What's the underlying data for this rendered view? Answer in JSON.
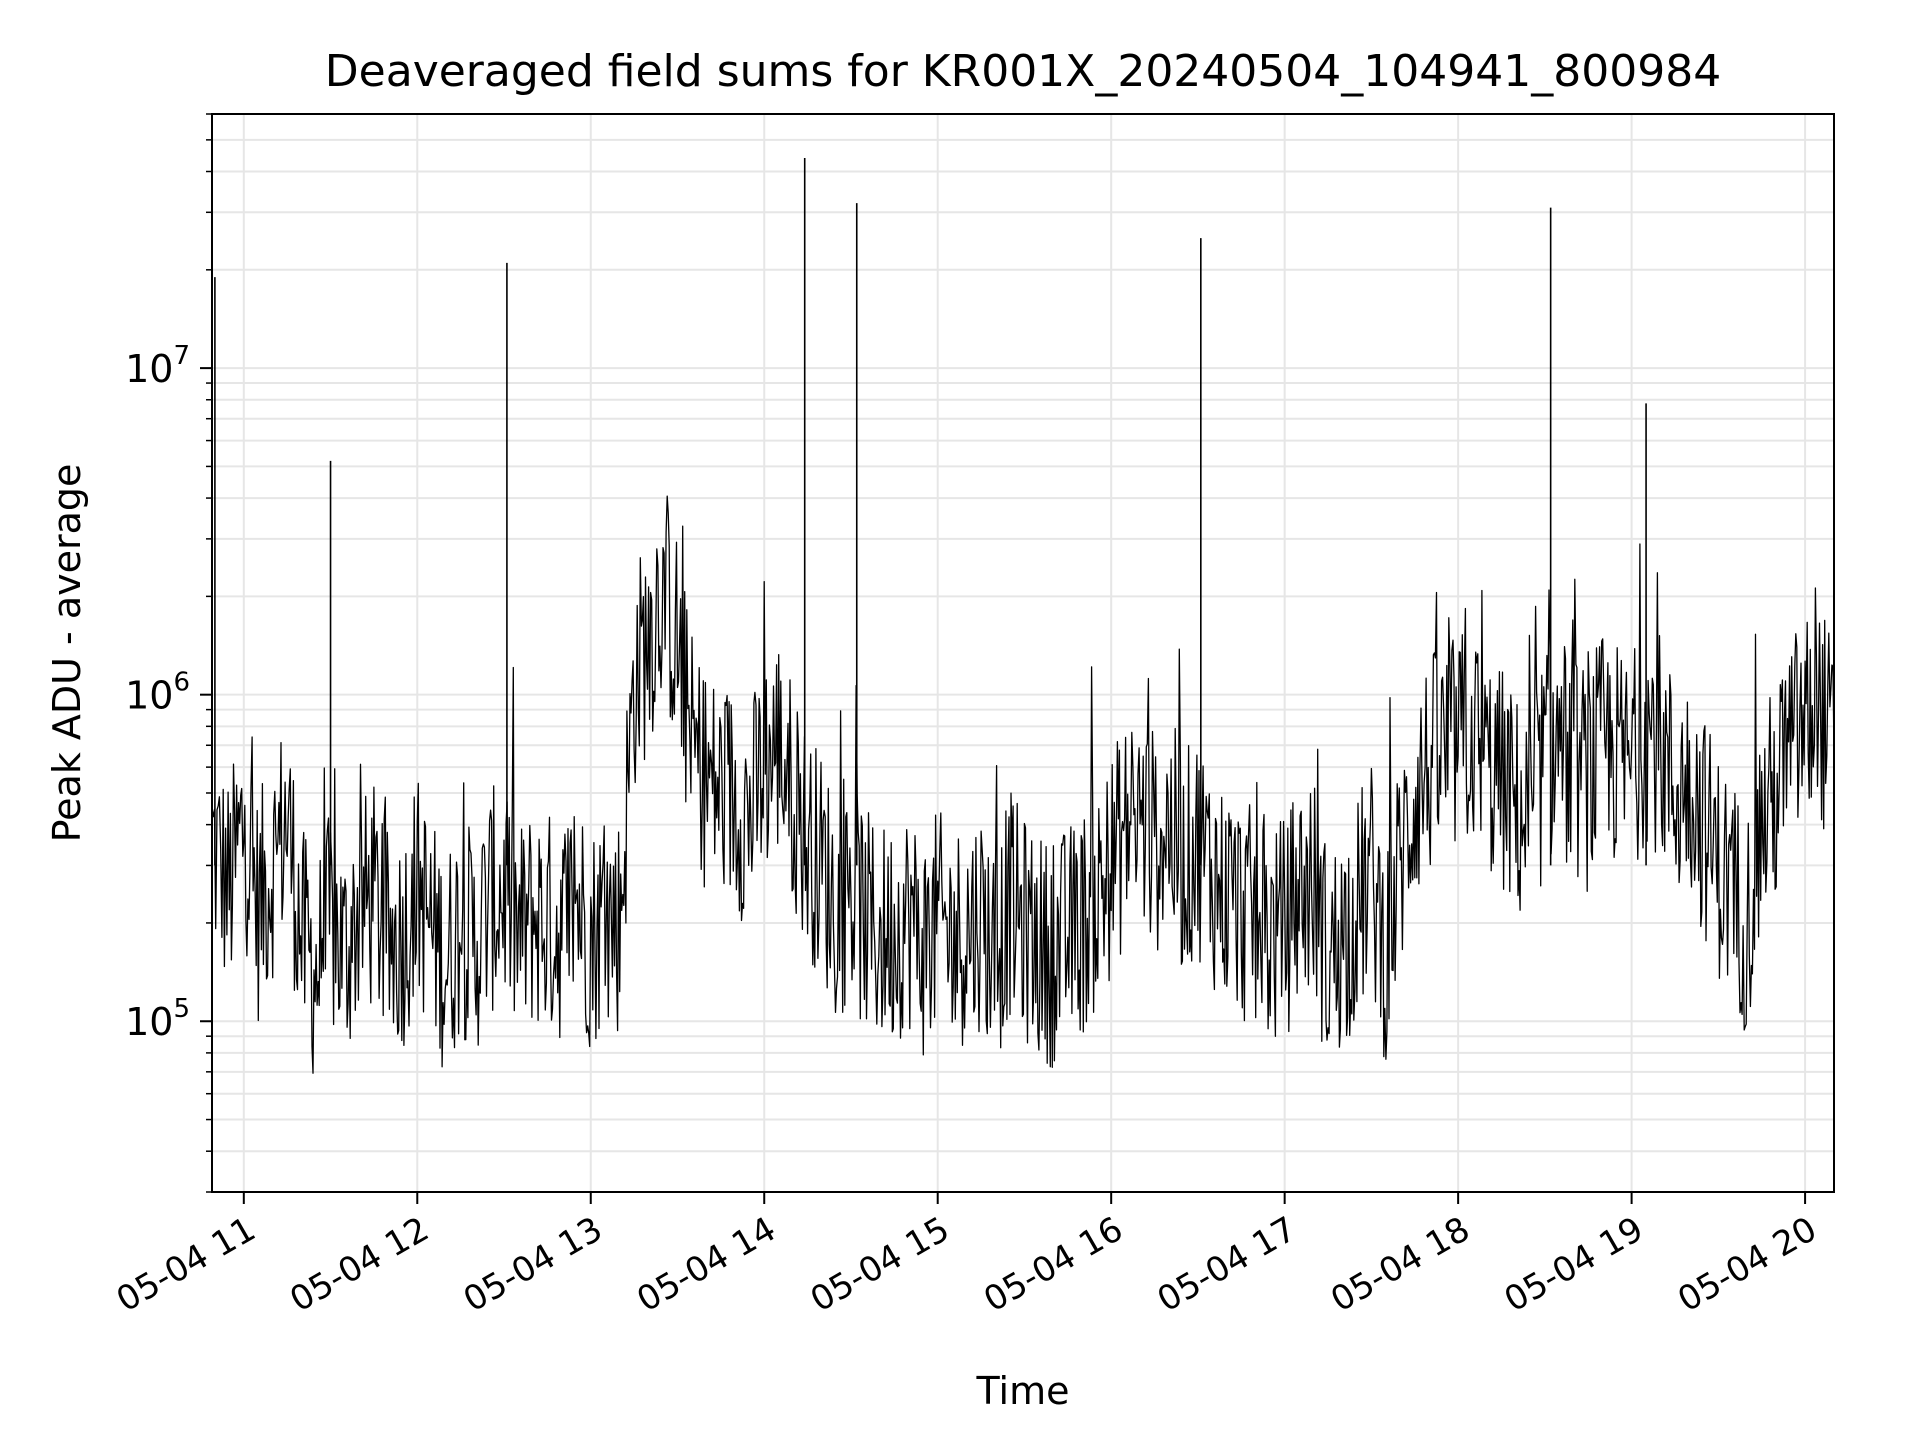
{
  "chart_data": {
    "type": "line",
    "title": "Deaveraged field sums for KR001X_20240504_104941_800984",
    "xlabel": "Time",
    "ylabel": "Peak ADU - average",
    "x_scale": "time",
    "y_scale": "log",
    "xlim": [
      "2024-05-04 10:49",
      "2024-05-04 20:10"
    ],
    "ylim": [
      30000,
      60000000
    ],
    "x_ticks": [
      "05-04 11",
      "05-04 12",
      "05-04 13",
      "05-04 14",
      "05-04 15",
      "05-04 16",
      "05-04 17",
      "05-04 18",
      "05-04 19",
      "05-04 20"
    ],
    "y_ticks": [
      {
        "base": "10",
        "exp": "5",
        "value": 100000
      },
      {
        "base": "10",
        "exp": "6",
        "value": 1000000
      },
      {
        "base": "10",
        "exp": "7",
        "value": 10000000
      }
    ],
    "grid": true,
    "line_color": "#000000",
    "series": [
      {
        "x": [
          "2024-05-04 10:49",
          "2024-05-04 10:55",
          "2024-05-04 11:00",
          "2024-05-04 11:05",
          "2024-05-04 11:10",
          "2024-05-04 11:15",
          "2024-05-04 11:20",
          "2024-05-04 11:25",
          "2024-05-04 11:30",
          "2024-05-04 11:35",
          "2024-05-04 11:40",
          "2024-05-04 11:45",
          "2024-05-04 11:50",
          "2024-05-04 11:55",
          "2024-05-04 12:00",
          "2024-05-04 12:05",
          "2024-05-04 12:10",
          "2024-05-04 12:15",
          "2024-05-04 12:20",
          "2024-05-04 12:25",
          "2024-05-04 12:30",
          "2024-05-04 12:35",
          "2024-05-04 12:40",
          "2024-05-04 12:45",
          "2024-05-04 12:50",
          "2024-05-04 12:55",
          "2024-05-04 13:00",
          "2024-05-04 13:05",
          "2024-05-04 13:10",
          "2024-05-04 13:15",
          "2024-05-04 13:20",
          "2024-05-04 13:25",
          "2024-05-04 13:30",
          "2024-05-04 13:35",
          "2024-05-04 13:40",
          "2024-05-04 13:45",
          "2024-05-04 13:50",
          "2024-05-04 13:55",
          "2024-05-04 14:00",
          "2024-05-04 14:05",
          "2024-05-04 14:10",
          "2024-05-04 14:15",
          "2024-05-04 14:20",
          "2024-05-04 14:25",
          "2024-05-04 14:30",
          "2024-05-04 14:35",
          "2024-05-04 14:40",
          "2024-05-04 14:45",
          "2024-05-04 14:50",
          "2024-05-04 14:55",
          "2024-05-04 15:00",
          "2024-05-04 15:05",
          "2024-05-04 15:10",
          "2024-05-04 15:15",
          "2024-05-04 15:20",
          "2024-05-04 15:25",
          "2024-05-04 15:30",
          "2024-05-04 15:35",
          "2024-05-04 15:40",
          "2024-05-04 15:45",
          "2024-05-04 15:50",
          "2024-05-04 15:55",
          "2024-05-04 16:00",
          "2024-05-04 16:05",
          "2024-05-04 16:10",
          "2024-05-04 16:15",
          "2024-05-04 16:20",
          "2024-05-04 16:25",
          "2024-05-04 16:30",
          "2024-05-04 16:35",
          "2024-05-04 16:40",
          "2024-05-04 16:45",
          "2024-05-04 16:50",
          "2024-05-04 16:55",
          "2024-05-04 17:00",
          "2024-05-04 17:05",
          "2024-05-04 17:10",
          "2024-05-04 17:15",
          "2024-05-04 17:20",
          "2024-05-04 17:25",
          "2024-05-04 17:30",
          "2024-05-04 17:35",
          "2024-05-04 17:40",
          "2024-05-04 17:45",
          "2024-05-04 17:50",
          "2024-05-04 17:55",
          "2024-05-04 18:00",
          "2024-05-04 18:05",
          "2024-05-04 18:10",
          "2024-05-04 18:15",
          "2024-05-04 18:20",
          "2024-05-04 18:25",
          "2024-05-04 18:30",
          "2024-05-04 18:35",
          "2024-05-04 18:40",
          "2024-05-04 18:45",
          "2024-05-04 18:50",
          "2024-05-04 18:55",
          "2024-05-04 19:00",
          "2024-05-04 19:05",
          "2024-05-04 19:10",
          "2024-05-04 19:15",
          "2024-05-04 19:20",
          "2024-05-04 19:25",
          "2024-05-04 19:30",
          "2024-05-04 19:35",
          "2024-05-04 19:40",
          "2024-05-04 19:45",
          "2024-05-04 19:50",
          "2024-05-04 19:55",
          "2024-05-04 20:00",
          "2024-05-04 20:05",
          "2024-05-04 20:10"
        ],
        "y": [
          350000,
          250000,
          400000,
          220000,
          300000,
          420000,
          180000,
          140000,
          200000,
          160000,
          220000,
          240000,
          170000,
          180000,
          260000,
          190000,
          150000,
          200000,
          170000,
          230000,
          250000,
          180000,
          210000,
          200000,
          190000,
          240000,
          180000,
          210000,
          200000,
          1100000,
          1500000,
          2200000,
          1400000,
          700000,
          550000,
          500000,
          480000,
          420000,
          600000,
          700000,
          500000,
          350000,
          300000,
          220000,
          250000,
          200000,
          180000,
          190000,
          210000,
          170000,
          200000,
          180000,
          190000,
          210000,
          160000,
          230000,
          190000,
          170000,
          160000,
          180000,
          200000,
          230000,
          300000,
          380000,
          420000,
          350000,
          400000,
          300000,
          350000,
          280000,
          240000,
          220000,
          200000,
          180000,
          190000,
          250000,
          260000,
          150000,
          180000,
          220000,
          280000,
          160000,
          300000,
          500000,
          600000,
          650000,
          700000,
          750000,
          600000,
          550000,
          450000,
          400000,
          650000,
          700000,
          600000,
          550000,
          700000,
          650000,
          600000,
          800000,
          700000,
          500000,
          550000,
          400000,
          300000,
          250000,
          200000,
          400000,
          500000,
          700000,
          800000,
          900000,
          650000
        ]
      }
    ],
    "spikes": [
      {
        "x": "2024-05-04 10:50",
        "y": 19000000
      },
      {
        "x": "2024-05-04 11:30",
        "y": 5200000
      },
      {
        "x": "2024-05-04 12:31",
        "y": 21000000
      },
      {
        "x": "2024-05-04 14:14",
        "y": 44000000
      },
      {
        "x": "2024-05-04 14:32",
        "y": 32000000
      },
      {
        "x": "2024-05-04 16:31",
        "y": 25000000
      },
      {
        "x": "2024-05-04 18:32",
        "y": 31000000
      },
      {
        "x": "2024-05-04 19:05",
        "y": 7800000
      }
    ]
  }
}
